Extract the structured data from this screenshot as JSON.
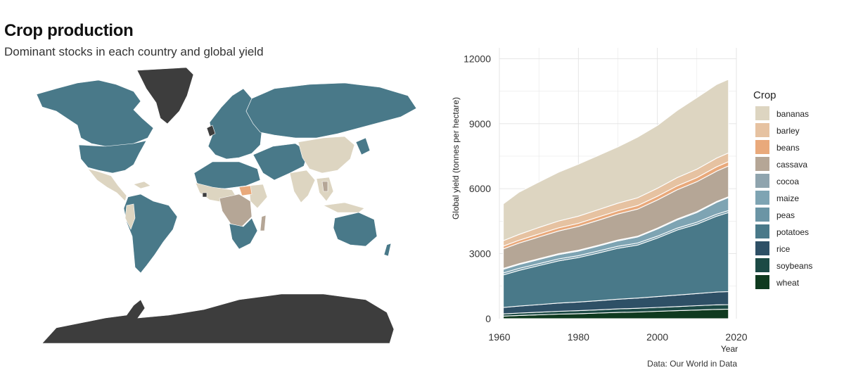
{
  "title": "Crop production",
  "subtitle": "Dominant stocks in each country and global yield",
  "caption": "Data: Our World in Data",
  "map": {
    "colors": {
      "ocean": "#ffffff",
      "no_data": "#3d3d3d",
      "bananas": "#ddd5c1",
      "beans": "#e9a97b",
      "cassava": "#b5a696",
      "potatoes": "#497989",
      "rice": "#2e5066"
    }
  },
  "chart_data": {
    "type": "area",
    "stacked": true,
    "xlabel": "Year",
    "ylabel": "Global yield (tonnes per hectare)",
    "xlim": [
      1960,
      2020
    ],
    "ylim": [
      0,
      12500
    ],
    "x_ticks": [
      1960,
      1980,
      2000,
      2020
    ],
    "y_ticks": [
      0,
      3000,
      6000,
      9000,
      12000
    ],
    "grid": true,
    "legend_title": "Crop",
    "legend_position": "right",
    "x": [
      1961,
      1965,
      1970,
      1975,
      1980,
      1985,
      1990,
      1995,
      2000,
      2005,
      2010,
      2015,
      2018
    ],
    "series": [
      {
        "name": "wheat",
        "color": "#0f3a1f",
        "values": [
          120,
          150,
          180,
          210,
          230,
          260,
          290,
          310,
          340,
          370,
          400,
          430,
          440
        ]
      },
      {
        "name": "soybeans",
        "color": "#1c4a45",
        "values": [
          100,
          110,
          120,
          130,
          140,
          150,
          160,
          170,
          180,
          190,
          200,
          210,
          210
        ]
      },
      {
        "name": "rice",
        "color": "#2e5066",
        "values": [
          300,
          320,
          350,
          380,
          400,
          420,
          450,
          470,
          500,
          530,
          560,
          590,
          600
        ]
      },
      {
        "name": "potatoes",
        "color": "#497989",
        "values": [
          1500,
          1650,
          1800,
          1950,
          2050,
          2200,
          2350,
          2450,
          2700,
          3000,
          3200,
          3500,
          3650
        ]
      },
      {
        "name": "peas",
        "color": "#6b95a5",
        "values": [
          90,
          90,
          90,
          90,
          90,
          90,
          90,
          90,
          90,
          90,
          90,
          90,
          90
        ]
      },
      {
        "name": "maize",
        "color": "#7ea4b3",
        "values": [
          170,
          180,
          190,
          200,
          210,
          230,
          250,
          280,
          330,
          380,
          450,
          550,
          600
        ]
      },
      {
        "name": "cocoa",
        "color": "#8fa4ae",
        "values": [
          40,
          40,
          40,
          40,
          40,
          40,
          40,
          40,
          40,
          40,
          40,
          40,
          40
        ]
      },
      {
        "name": "cassava",
        "color": "#b5a696",
        "values": [
          900,
          950,
          1000,
          1050,
          1100,
          1150,
          1200,
          1250,
          1300,
          1350,
          1380,
          1400,
          1420
        ]
      },
      {
        "name": "beans",
        "color": "#e9a97b",
        "values": [
          130,
          130,
          140,
          140,
          140,
          150,
          150,
          160,
          170,
          180,
          190,
          200,
          200
        ]
      },
      {
        "name": "barley",
        "color": "#e6c2a1",
        "values": [
          250,
          270,
          300,
          320,
          330,
          340,
          350,
          360,
          370,
          380,
          390,
          400,
          400
        ]
      },
      {
        "name": "bananas",
        "color": "#ddd5c1",
        "values": [
          1700,
          1950,
          2100,
          2250,
          2400,
          2500,
          2600,
          2800,
          2900,
          3100,
          3300,
          3400,
          3400
        ]
      }
    ]
  }
}
